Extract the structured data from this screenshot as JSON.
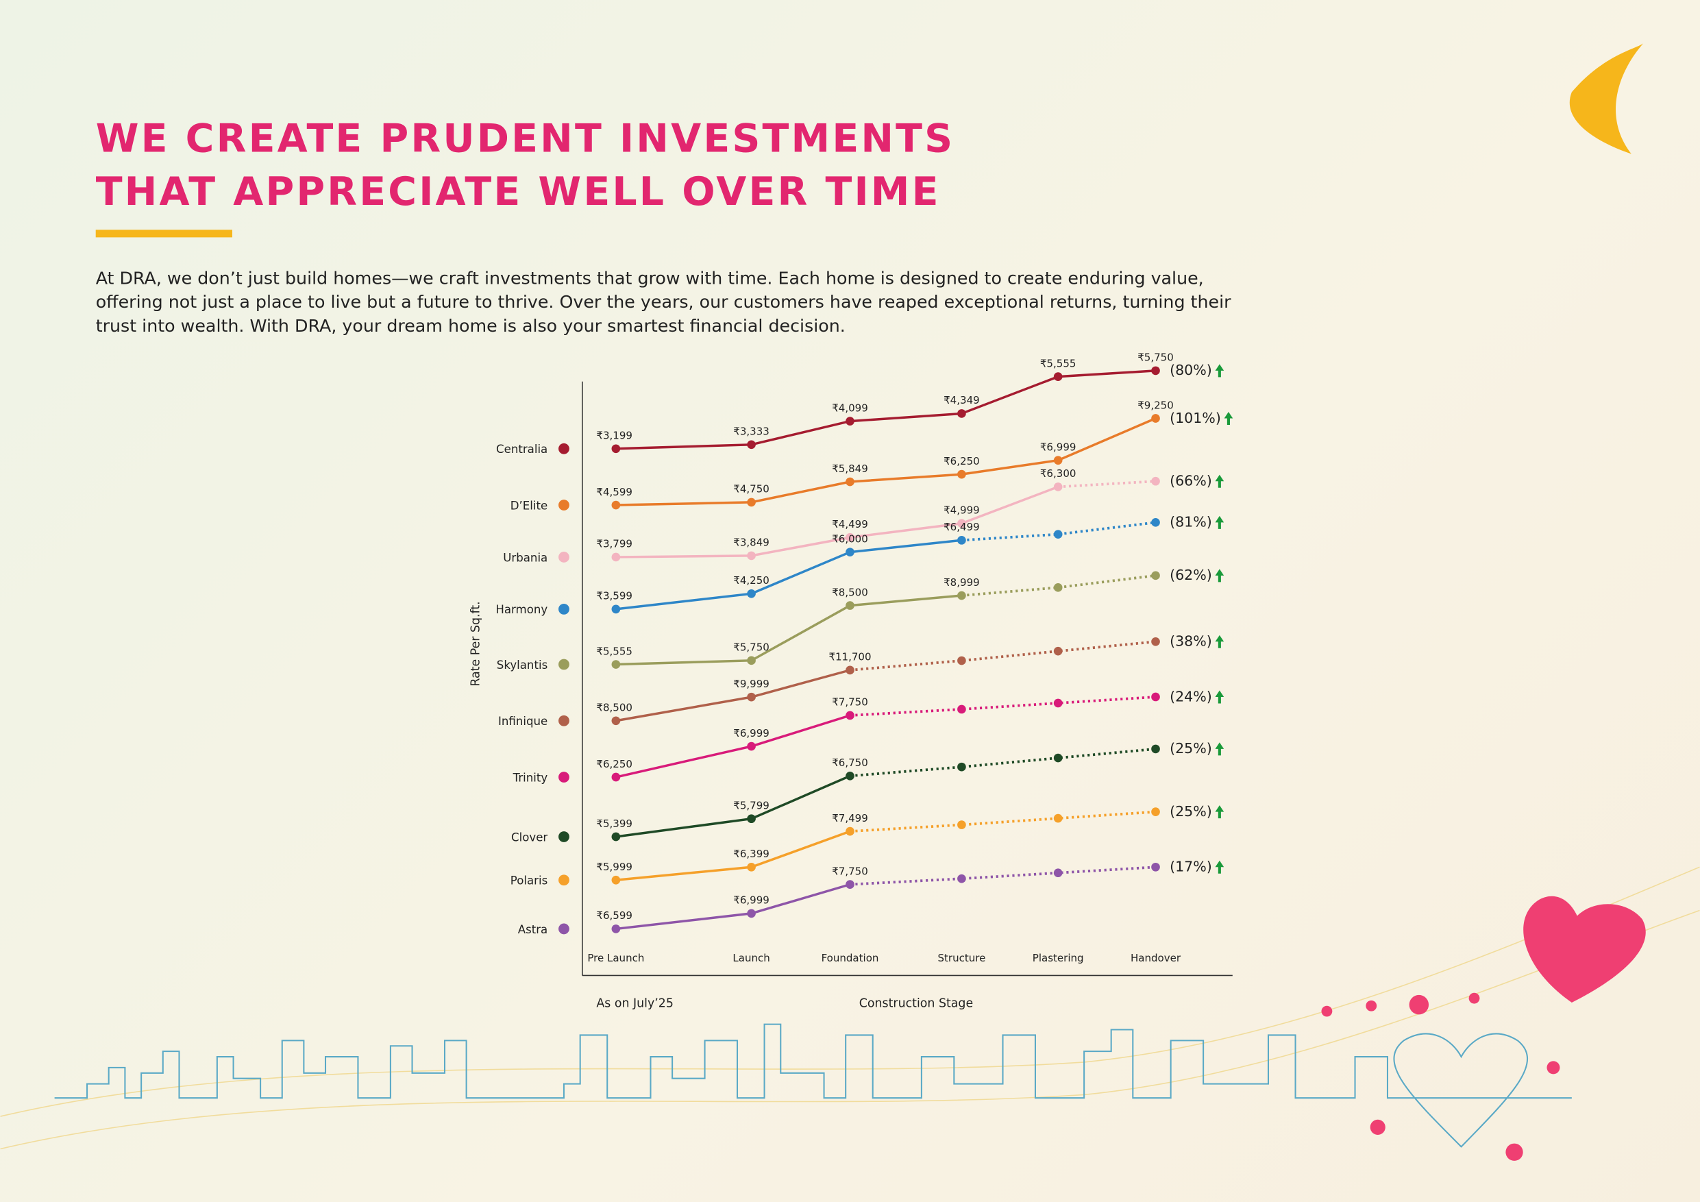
{
  "header": {
    "title_lines": [
      "WE CREATE PRUDENT INVESTMENTS",
      "THAT APPRECIATE WELL OVER TIME"
    ],
    "intro_lines": [
      "At DRA, we don’t just build homes—we craft investments that grow with time. Each home is designed to create enduring value,",
      "offering not just a place to live but a future to thrive. Over the years, our customers have reaped exceptional returns, turning their",
      "trust into wealth. With DRA, your dream home is also your smartest financial  decision."
    ]
  },
  "chart_data": {
    "type": "line",
    "y_label": "Rate Per Sq.ft.",
    "x_label": "Construction Stage",
    "note": "As on July’25",
    "categories": [
      "Pre Launch",
      "Launch",
      "Foundation",
      "Structure",
      "Plastering",
      "Handover"
    ],
    "series": [
      {
        "name": "Centralia",
        "color": "#a51c30",
        "values": [
          3199,
          3333,
          4099,
          4349,
          5555,
          5750
        ],
        "value_labels": [
          "₹3,199",
          "₹3,333",
          "₹4,099",
          "₹4,349",
          "₹5,555",
          "₹5,750"
        ],
        "growth_label": "(80%)",
        "dashed_from": 5
      },
      {
        "name": "D’Elite",
        "color": "#e87b2a",
        "values": [
          4599,
          4750,
          5849,
          6250,
          6999,
          9250
        ],
        "value_labels": [
          "₹4,599",
          "₹4,750",
          "₹5,849",
          "₹6,250",
          "₹6,999",
          "₹9,250"
        ],
        "growth_label": "(101%)",
        "dashed_from": 5
      },
      {
        "name": "Urbania",
        "color": "#f3b4c0",
        "values": [
          3799,
          3849,
          4499,
          4999,
          6300,
          6500
        ],
        "value_labels": [
          "₹3,799",
          "₹3,849",
          "₹4,499",
          "₹4,999",
          "₹6,300",
          null
        ],
        "growth_label": "(66%)",
        "dashed_from": 4
      },
      {
        "name": "Harmony",
        "color": "#2e86c8",
        "values": [
          3599,
          4250,
          6000,
          6499,
          6750,
          7250
        ],
        "value_labels": [
          "₹3,599",
          "₹4,250",
          "₹6,000",
          "₹6,499",
          null,
          null
        ],
        "growth_label": "(81%)",
        "dashed_from": 3
      },
      {
        "name": "Skylantis",
        "color": "#9a9d5c",
        "values": [
          5555,
          5750,
          8500,
          8999,
          9400,
          10000
        ],
        "value_labels": [
          "₹5,555",
          "₹5,750",
          "₹8,500",
          "₹8,999",
          null,
          null
        ],
        "growth_label": "(62%)",
        "dashed_from": 3
      },
      {
        "name": "Infinique",
        "color": "#b0604a",
        "values": [
          8500,
          9999,
          11700,
          12300,
          12900,
          13500
        ],
        "value_labels": [
          "₹8,500",
          "₹9,999",
          "₹11,700",
          null,
          null,
          null
        ],
        "growth_label": "(38%)",
        "dashed_from": 2
      },
      {
        "name": "Trinity",
        "color": "#d81b7a",
        "values": [
          6250,
          6999,
          7750,
          7900,
          8050,
          8200
        ],
        "value_labels": [
          "₹6,250",
          "₹6,999",
          "₹7,750",
          null,
          null,
          null
        ],
        "growth_label": "(24%)",
        "dashed_from": 2
      },
      {
        "name": "Clover",
        "color": "#1f4a26",
        "values": [
          5399,
          5799,
          6750,
          6950,
          7150,
          7350
        ],
        "value_labels": [
          "₹5,399",
          "₹5,799",
          "₹6,750",
          null,
          null,
          null
        ],
        "growth_label": "(25%)",
        "dashed_from": 2
      },
      {
        "name": "Polaris",
        "color": "#f5a02a",
        "values": [
          5999,
          6399,
          7499,
          7700,
          7900,
          8100
        ],
        "value_labels": [
          "₹5,999",
          "₹6,399",
          "₹7,499",
          null,
          null,
          null
        ],
        "growth_label": "(25%)",
        "dashed_from": 2
      },
      {
        "name": "Astra",
        "color": "#8e55a8",
        "values": [
          6599,
          6999,
          7750,
          7900,
          8050,
          8200
        ],
        "value_labels": [
          "₹6,599",
          "₹6,999",
          "₹7,750",
          null,
          null,
          null
        ],
        "growth_label": "(17%)",
        "dashed_from": 2
      }
    ]
  }
}
